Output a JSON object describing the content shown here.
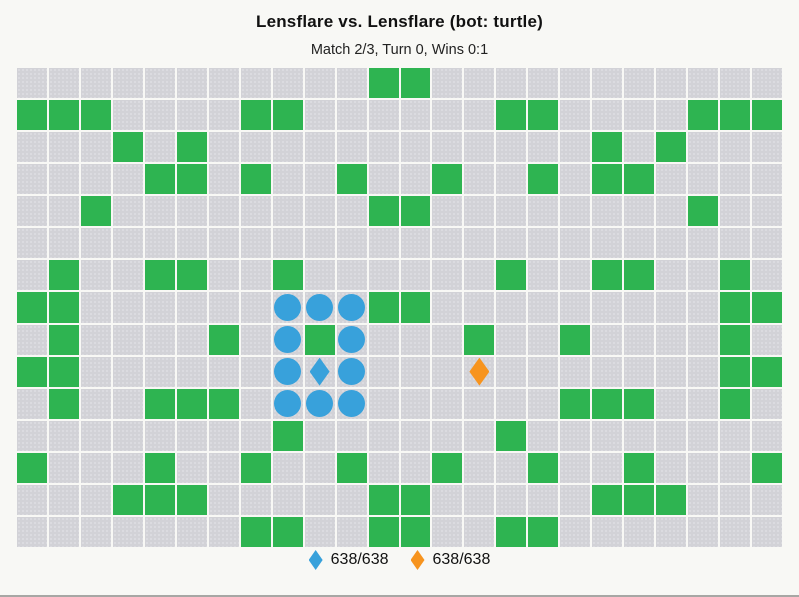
{
  "header": {
    "title": "Lensflare vs. Lensflare (bot: turtle)",
    "subtitle": "Match 2/3, Turn 0, Wins 0:1"
  },
  "board": {
    "cols": 24,
    "rows": 15,
    "green_cells": [
      [
        11,
        0
      ],
      [
        12,
        0
      ],
      [
        0,
        1
      ],
      [
        1,
        1
      ],
      [
        2,
        1
      ],
      [
        7,
        1
      ],
      [
        8,
        1
      ],
      [
        15,
        1
      ],
      [
        16,
        1
      ],
      [
        21,
        1
      ],
      [
        22,
        1
      ],
      [
        23,
        1
      ],
      [
        3,
        2
      ],
      [
        5,
        2
      ],
      [
        18,
        2
      ],
      [
        20,
        2
      ],
      [
        4,
        3
      ],
      [
        5,
        3
      ],
      [
        7,
        3
      ],
      [
        10,
        3
      ],
      [
        13,
        3
      ],
      [
        16,
        3
      ],
      [
        18,
        3
      ],
      [
        19,
        3
      ],
      [
        2,
        4
      ],
      [
        11,
        4
      ],
      [
        12,
        4
      ],
      [
        21,
        4
      ],
      [
        1,
        6
      ],
      [
        4,
        6
      ],
      [
        5,
        6
      ],
      [
        8,
        6
      ],
      [
        15,
        6
      ],
      [
        18,
        6
      ],
      [
        19,
        6
      ],
      [
        22,
        6
      ],
      [
        0,
        7
      ],
      [
        1,
        7
      ],
      [
        11,
        7
      ],
      [
        12,
        7
      ],
      [
        22,
        7
      ],
      [
        23,
        7
      ],
      [
        1,
        8
      ],
      [
        6,
        8
      ],
      [
        9,
        8
      ],
      [
        14,
        8
      ],
      [
        17,
        8
      ],
      [
        22,
        8
      ],
      [
        0,
        9
      ],
      [
        1,
        9
      ],
      [
        22,
        9
      ],
      [
        23,
        9
      ],
      [
        1,
        10
      ],
      [
        4,
        10
      ],
      [
        5,
        10
      ],
      [
        6,
        10
      ],
      [
        17,
        10
      ],
      [
        18,
        10
      ],
      [
        19,
        10
      ],
      [
        22,
        10
      ],
      [
        8,
        11
      ],
      [
        15,
        11
      ],
      [
        0,
        12
      ],
      [
        4,
        12
      ],
      [
        7,
        12
      ],
      [
        10,
        12
      ],
      [
        13,
        12
      ],
      [
        16,
        12
      ],
      [
        19,
        12
      ],
      [
        23,
        12
      ],
      [
        3,
        13
      ],
      [
        4,
        13
      ],
      [
        5,
        13
      ],
      [
        11,
        13
      ],
      [
        12,
        13
      ],
      [
        18,
        13
      ],
      [
        19,
        13
      ],
      [
        20,
        13
      ],
      [
        7,
        14
      ],
      [
        8,
        14
      ],
      [
        11,
        14
      ],
      [
        12,
        14
      ],
      [
        15,
        14
      ],
      [
        16,
        14
      ]
    ],
    "pieces": {
      "blue_circles": [
        [
          8,
          7
        ],
        [
          9,
          7
        ],
        [
          10,
          7
        ],
        [
          8,
          8
        ],
        [
          10,
          8
        ],
        [
          8,
          9
        ],
        [
          10,
          9
        ],
        [
          8,
          10
        ],
        [
          9,
          10
        ],
        [
          10,
          10
        ]
      ],
      "blue_diamond": [
        9,
        9
      ],
      "orange_diamond": [
        14,
        9
      ]
    }
  },
  "legend": {
    "items": [
      {
        "icon": "blue-diamond-icon",
        "label": "638/638"
      },
      {
        "icon": "orange-diamond-icon",
        "label": "638/638"
      }
    ]
  },
  "colors": {
    "green": "#2eb451",
    "cell_gray": "#d2d2d7",
    "blue": "#38a1db",
    "orange": "#f7941e",
    "page_background": "#f8f8f5"
  }
}
